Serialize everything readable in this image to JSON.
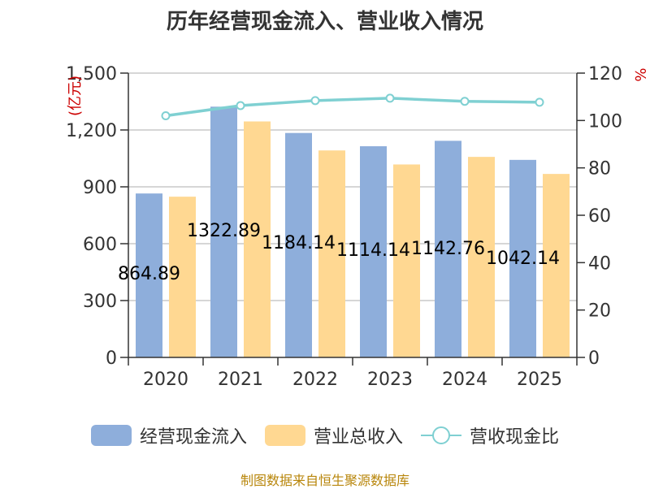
{
  "source": "制图数据来自恒生聚源数据库",
  "colors": {
    "cash": "#8eaedb",
    "revenue": "#ffd892",
    "ratio": "#7fd0d2",
    "axis": "#333333",
    "grid": "#c8c8c8",
    "unit": "#cc0000",
    "source": "#b8860b"
  },
  "chart_data": {
    "type": "bar",
    "title": "历年经营现金流入、营业收入情况",
    "categories": [
      "2020",
      "2021",
      "2022",
      "2023",
      "2024",
      "2025"
    ],
    "y_left": {
      "unit": "(亿元)",
      "min": 0,
      "max": 1500,
      "ticks": [
        0,
        300,
        600,
        900,
        1200,
        1500
      ],
      "tick_labels": [
        "0",
        "300",
        "600",
        "900",
        "1,200",
        "1,500"
      ]
    },
    "y_right": {
      "unit": "%",
      "min": 0,
      "max": 120,
      "ticks": [
        0,
        20,
        40,
        60,
        80,
        100,
        120
      ],
      "tick_labels": [
        "0",
        "20",
        "40",
        "60",
        "80",
        "100",
        "120"
      ]
    },
    "grid": true,
    "legend_position": "bottom",
    "series": [
      {
        "name": "经营现金流入",
        "type": "bar",
        "axis": "left",
        "values": [
          864.89,
          1322.89,
          1184.14,
          1114.14,
          1142.76,
          1042.14
        ],
        "data_labels": [
          "864.89",
          "1322.89",
          "1184.14",
          "1114.14",
          "1142.76",
          "1042.14"
        ]
      },
      {
        "name": "营业总收入",
        "type": "bar",
        "axis": "left",
        "values": [
          848,
          1245,
          1092,
          1018,
          1058,
          968
        ]
      },
      {
        "name": "营收现金比",
        "type": "line",
        "axis": "right",
        "values": [
          102.0,
          106.3,
          108.4,
          109.4,
          108.1,
          107.7
        ]
      }
    ]
  }
}
